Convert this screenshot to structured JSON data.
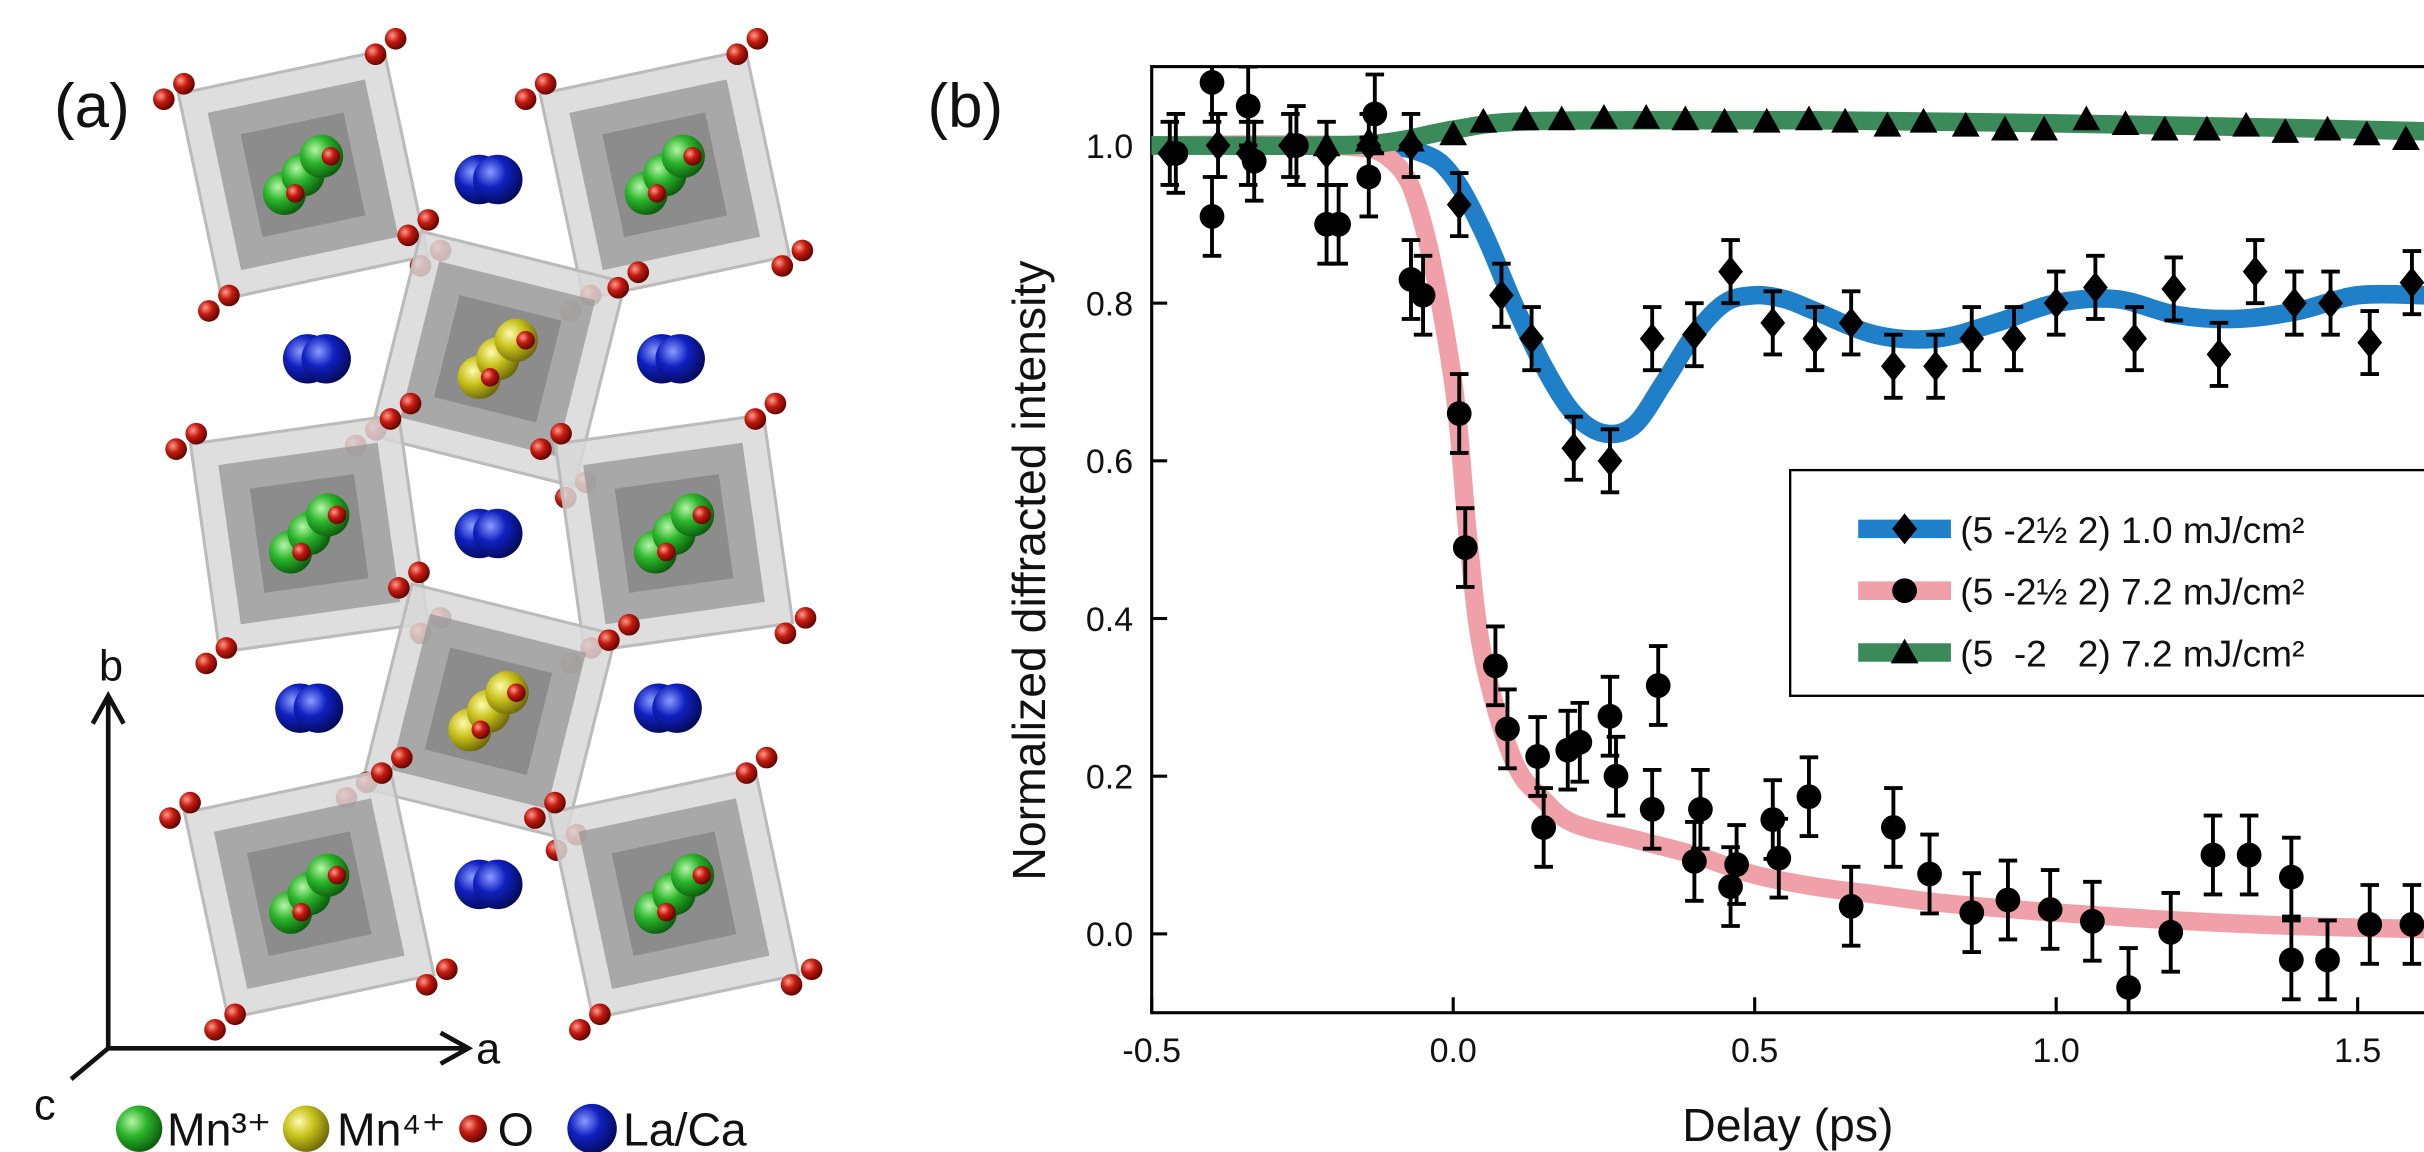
{
  "panel_a": {
    "label": "(a)",
    "axes": {
      "b": "b",
      "a": "a",
      "c": "c"
    },
    "legend": [
      "Mn³⁺",
      "Mn⁴⁺",
      "O",
      "La/Ca"
    ]
  },
  "chart_data": {
    "type": "scatter",
    "panel_label": "(b)",
    "xlabel": "Delay (ps)",
    "ylabel": "Normalized diffracted intensity",
    "xlim": [
      -0.5,
      1.61
    ],
    "ylim": [
      -0.1,
      1.1
    ],
    "xticks": [
      {
        "value": -0.5,
        "label": "-0.5"
      },
      {
        "value": 0,
        "label": "0.0"
      },
      0.5,
      {
        "value": 1,
        "label": "1.0"
      },
      1.5
    ],
    "yticks": [
      {
        "value": 0,
        "label": "0.0"
      },
      0.2,
      0.4,
      0.6,
      0.8,
      {
        "value": 1,
        "label": "1.0"
      }
    ],
    "legend_position": "right",
    "series": [
      {
        "name": "(5 -2½ 2) 1.0 mJ/cm²",
        "color": "#1f7fc8",
        "marker": "diamond",
        "marker_color": "#000000",
        "x": [
          -0.47,
          -0.39,
          -0.34,
          -0.27,
          -0.21,
          -0.14,
          -0.07,
          0.01,
          0.08,
          0.13,
          0.2,
          0.26,
          0.33,
          0.4,
          0.46,
          0.53,
          0.6,
          0.66,
          0.73,
          0.8,
          0.86,
          0.93,
          1.0,
          1.065,
          1.13,
          1.195,
          1.27,
          1.33,
          1.395,
          1.455,
          1.52,
          1.59
        ],
        "values": [
          0.99,
          1.0,
          0.99,
          1.0,
          0.99,
          1.0,
          1.0,
          0.925,
          0.81,
          0.755,
          0.616,
          0.6,
          0.755,
          0.76,
          0.84,
          0.775,
          0.755,
          0.775,
          0.72,
          0.72,
          0.755,
          0.755,
          0.8,
          0.82,
          0.755,
          0.818,
          0.735,
          0.84,
          0.8,
          0.8,
          0.75,
          0.826
        ],
        "errors": [
          0.04,
          0.04,
          0.04,
          0.04,
          0.04,
          0.04,
          0.04,
          0.04,
          0.04,
          0.04,
          0.04,
          0.04,
          0.04,
          0.04,
          0.04,
          0.04,
          0.04,
          0.04,
          0.04,
          0.04,
          0.04,
          0.04,
          0.04,
          0.04,
          0.04,
          0.04,
          0.04,
          0.04,
          0.04,
          0.04,
          0.04,
          0.04
        ],
        "fit": {
          "x": [
            -0.5,
            -0.15,
            -0.05,
            0,
            0.05,
            0.1,
            0.15,
            0.2,
            0.25,
            0.3,
            0.35,
            0.4,
            0.45,
            0.5,
            0.55,
            0.6,
            0.7,
            0.8,
            0.9,
            1.0,
            1.1,
            1.2,
            1.3,
            1.4,
            1.5,
            1.61
          ],
          "values": [
            1.0,
            1.0,
            0.99,
            0.96,
            0.89,
            0.8,
            0.72,
            0.66,
            0.635,
            0.645,
            0.7,
            0.76,
            0.8,
            0.81,
            0.805,
            0.79,
            0.76,
            0.755,
            0.775,
            0.8,
            0.805,
            0.785,
            0.78,
            0.79,
            0.81,
            0.81
          ]
        }
      },
      {
        "name": "(5 -2½ 2) 7.2 mJ/cm²",
        "color": "#f0a0a8",
        "marker": "circle",
        "marker_color": "#000000",
        "x": [
          -0.46,
          -0.4,
          -0.4,
          -0.34,
          -0.33,
          -0.26,
          -0.21,
          -0.19,
          -0.14,
          -0.13,
          -0.07,
          -0.05,
          0.01,
          0.02,
          0.07,
          0.09,
          0.14,
          0.15,
          0.19,
          0.21,
          0.26,
          0.27,
          0.33,
          0.34,
          0.4,
          0.41,
          0.46,
          0.47,
          0.53,
          0.54,
          0.59,
          0.66,
          0.73,
          0.79,
          0.86,
          0.92,
          0.99,
          1.06,
          1.12,
          1.19,
          1.26,
          1.32,
          1.39,
          1.39,
          1.45,
          1.52,
          1.59
        ],
        "values": [
          0.99,
          1.08,
          0.91,
          1.05,
          0.98,
          1.0,
          0.9,
          0.9,
          0.96,
          1.04,
          0.83,
          0.81,
          0.66,
          0.49,
          0.34,
          0.26,
          0.225,
          0.135,
          0.233,
          0.243,
          0.276,
          0.2,
          0.158,
          0.315,
          0.092,
          0.158,
          0.06,
          0.088,
          0.145,
          0.096,
          0.174,
          0.035,
          0.135,
          0.076,
          0.027,
          0.043,
          0.031,
          0.016,
          -0.068,
          0.002,
          0.1,
          0.1,
          -0.033,
          0.072,
          -0.033,
          0.012,
          0.012
        ],
        "errors": [
          0.05,
          0.05,
          0.05,
          0.05,
          0.05,
          0.05,
          0.05,
          0.05,
          0.05,
          0.05,
          0.05,
          0.05,
          0.05,
          0.05,
          0.05,
          0.05,
          0.05,
          0.05,
          0.05,
          0.05,
          0.05,
          0.05,
          0.05,
          0.05,
          0.05,
          0.05,
          0.05,
          0.05,
          0.05,
          0.05,
          0.05,
          0.05,
          0.05,
          0.05,
          0.05,
          0.05,
          0.05,
          0.05,
          0.05,
          0.05,
          0.05,
          0.05,
          0.05,
          0.05,
          0.05,
          0.05,
          0.05
        ],
        "fit": {
          "x": [
            -0.5,
            -0.2,
            -0.1,
            -0.05,
            0,
            0.025,
            0.05,
            0.1,
            0.15,
            0.2,
            0.3,
            0.4,
            0.5,
            0.6,
            0.7,
            0.8,
            0.9,
            1.0,
            1.2,
            1.4,
            1.61
          ],
          "values": [
            1.0,
            1.0,
            0.98,
            0.9,
            0.7,
            0.5,
            0.35,
            0.22,
            0.17,
            0.14,
            0.12,
            0.1,
            0.075,
            0.06,
            0.05,
            0.04,
            0.033,
            0.027,
            0.017,
            0.01,
            0.006
          ]
        }
      },
      {
        "name": "(5  -2   2) 7.2 mJ/cm²",
        "color": "#3a8a5a",
        "marker": "triangle",
        "marker_color": "#000000",
        "x": [
          -0.21,
          -0.14,
          -0.07,
          0.0,
          0.05,
          0.12,
          0.18,
          0.25,
          0.32,
          0.385,
          0.45,
          0.52,
          0.59,
          0.65,
          0.72,
          0.78,
          0.85,
          0.915,
          0.98,
          1.05,
          1.115,
          1.18,
          1.25,
          1.315,
          1.38,
          1.45,
          1.515,
          1.58
        ],
        "values": [
          1.0,
          1.006,
          1.006,
          1.014,
          1.03,
          1.033,
          1.033,
          1.035,
          1.035,
          1.033,
          1.03,
          1.03,
          1.033,
          1.03,
          1.025,
          1.03,
          1.025,
          1.02,
          1.02,
          1.033,
          1.027,
          1.02,
          1.02,
          1.025,
          1.017,
          1.02,
          1.014,
          1.008
        ],
        "fit": {
          "x": [
            -0.5,
            -0.2,
            -0.1,
            0,
            0.1,
            0.3,
            0.6,
            1.0,
            1.4,
            1.61
          ],
          "values": [
            1.0,
            1.0,
            1.005,
            1.02,
            1.03,
            1.032,
            1.032,
            1.028,
            1.022,
            1.018
          ]
        }
      }
    ]
  }
}
